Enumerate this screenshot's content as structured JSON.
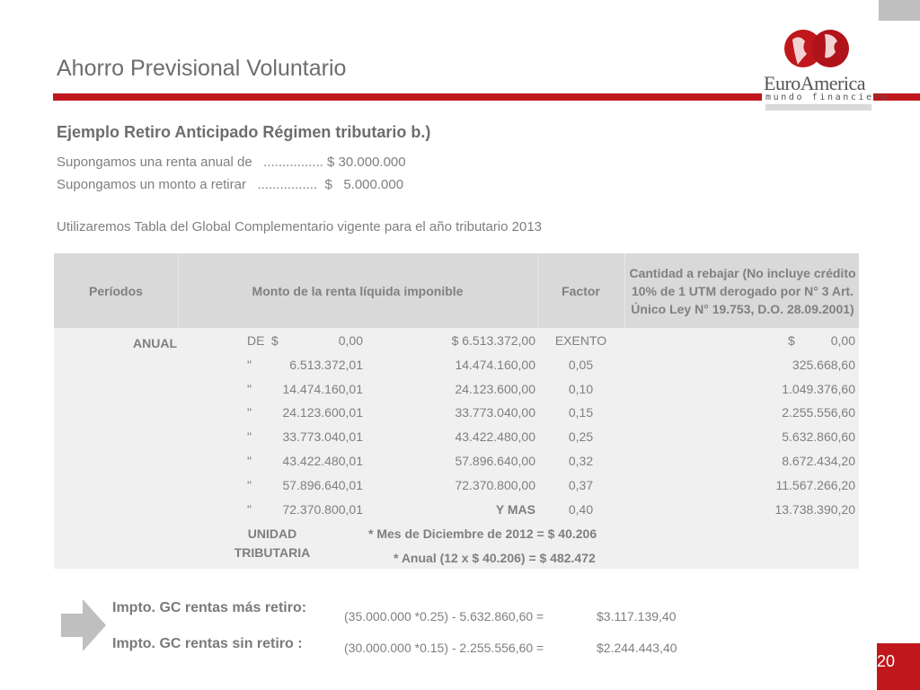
{
  "header": {
    "title": "Ahorro Previsional Voluntario",
    "logo": {
      "name": "EuroAmerica",
      "tagline": "mundo financiero"
    },
    "accent_color": "#c0171c"
  },
  "content": {
    "subtitle": "Ejemplo Retiro Anticipado Régimen tributario b.)",
    "lines": [
      "Supongamos una renta anual de   ................ $ 30.000.000",
      "Supongamos un monto a retirar   ................  $   5.000.000",
      "Utilizaremos Tabla del Global Complementario vigente para el año tributario 2013"
    ]
  },
  "table": {
    "headers": [
      "Períodos",
      "Monto de la renta líquida imponible",
      "Factor",
      "Cantidad a rebajar (No incluye crédito 10% de 1 UTM derogado por N° 3 Art. Único Ley N° 19.753, D.O. 28.09.2001)"
    ],
    "period": "ANUAL",
    "rows": [
      {
        "prefix": "DE",
        "cur": "$",
        "from": "0,00",
        "to": "$ 6.513.372,00",
        "factor": "EXENTO",
        "cur2": "$",
        "rebate": "0,00"
      },
      {
        "prefix": "\"",
        "cur": "",
        "from": "6.513.372,01",
        "to": "14.474.160,00",
        "factor": "0,05",
        "cur2": "",
        "rebate": "325.668,60"
      },
      {
        "prefix": "\"",
        "cur": "",
        "from": "14.474.160,01",
        "to": "24.123.600,00",
        "factor": "0,10",
        "cur2": "",
        "rebate": "1.049.376,60"
      },
      {
        "prefix": "\"",
        "cur": "",
        "from": "24.123.600,01",
        "to": "33.773.040,00",
        "factor": "0,15",
        "cur2": "",
        "rebate": "2.255.556,60"
      },
      {
        "prefix": "\"",
        "cur": "",
        "from": "33.773.040,01",
        "to": "43.422.480,00",
        "factor": "0,25",
        "cur2": "",
        "rebate": "5.632.860,60"
      },
      {
        "prefix": "\"",
        "cur": "",
        "from": "43.422.480,01",
        "to": "57.896.640,00",
        "factor": "0,32",
        "cur2": "",
        "rebate": "8.672.434,20"
      },
      {
        "prefix": "\"",
        "cur": "",
        "from": "57.896.640,01",
        "to": "72.370.800,00",
        "factor": "0,37",
        "cur2": "",
        "rebate": "11.567.266,20"
      },
      {
        "prefix": "\"",
        "cur": "",
        "from": "72.370.800,01",
        "to": "Y MAS",
        "factor": "0,40",
        "cur2": "",
        "rebate": "13.738.390,20"
      }
    ],
    "ut_label_1": "UNIDAD",
    "ut_label_2": "TRIBUTARIA",
    "ut_month": "* Mes de Diciembre de 2012 = $  40.206",
    "ut_annual": "* Anual (12 x $ 40.206)  = $ 482.472"
  },
  "results": [
    {
      "label": "Impto. GC rentas más retiro:",
      "formula": "(35.000.000 *0.25) - 5.632.860,60 =",
      "value": "$3.117.139,40"
    },
    {
      "label": "Impto. GC rentas sin retiro :",
      "formula": "(30.000.000 *0.15) - 2.255.556,60 =",
      "value": "$2.244.443,40"
    }
  ],
  "footer": {
    "page_number": "20"
  }
}
